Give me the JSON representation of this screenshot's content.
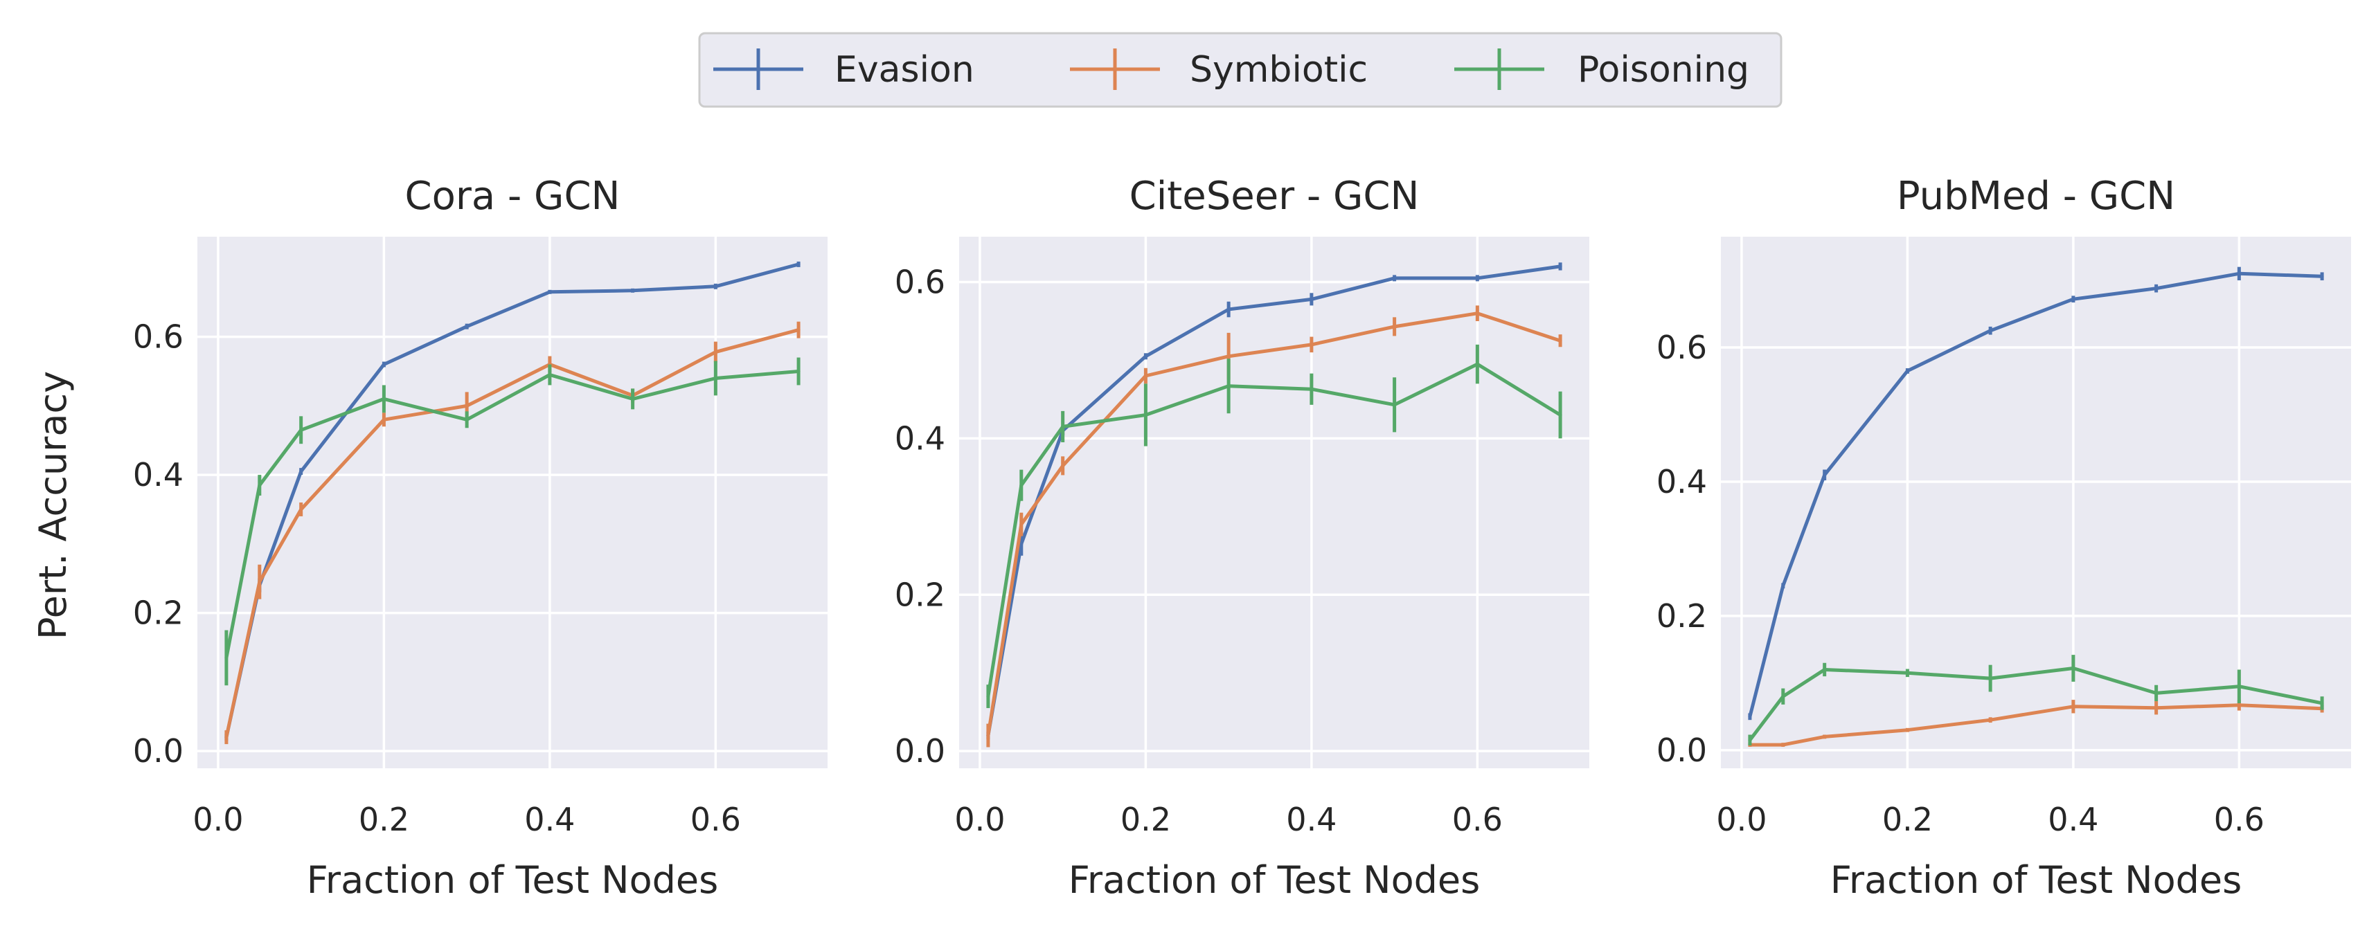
{
  "legend": [
    {
      "name": "Evasion",
      "color": "#4c72b0"
    },
    {
      "name": "Symbiotic",
      "color": "#dd8452"
    },
    {
      "name": "Poisoning",
      "color": "#55a868"
    }
  ],
  "chart_data": [
    {
      "type": "line",
      "title": "Cora - GCN",
      "xlabel": "Fraction of Test Nodes",
      "ylabel": "Pert. Accuracy",
      "xlim": [
        -0.025,
        0.735
      ],
      "ylim": [
        -0.025,
        0.745
      ],
      "xticks": [
        0.0,
        0.2,
        0.4,
        0.6
      ],
      "xtick_labels": [
        "0.0",
        "0.2",
        "0.4",
        "0.6"
      ],
      "yticks": [
        0.0,
        0.2,
        0.4,
        0.6
      ],
      "ytick_labels": [
        "0.0",
        "0.2",
        "0.4",
        "0.6"
      ],
      "x": [
        0.01,
        0.05,
        0.1,
        0.2,
        0.3,
        0.4,
        0.5,
        0.6,
        0.7
      ],
      "series": [
        {
          "name": "Evasion",
          "values": [
            0.02,
            0.24,
            0.405,
            0.56,
            0.615,
            0.665,
            0.667,
            0.673,
            0.705
          ],
          "errors": [
            0.005,
            0.01,
            0.005,
            0.004,
            0.004,
            0.003,
            0.003,
            0.004,
            0.004
          ]
        },
        {
          "name": "Symbiotic",
          "values": [
            0.02,
            0.245,
            0.35,
            0.48,
            0.5,
            0.56,
            0.515,
            0.578,
            0.61
          ],
          "errors": [
            0.01,
            0.025,
            0.01,
            0.01,
            0.02,
            0.012,
            0.01,
            0.015,
            0.012
          ]
        },
        {
          "name": "Poisoning",
          "values": [
            0.135,
            0.385,
            0.465,
            0.51,
            0.48,
            0.545,
            0.51,
            0.54,
            0.55
          ],
          "errors": [
            0.04,
            0.015,
            0.02,
            0.02,
            0.012,
            0.015,
            0.015,
            0.025,
            0.02
          ]
        }
      ]
    },
    {
      "type": "line",
      "title": "CiteSeer - GCN",
      "xlabel": "Fraction of Test Nodes",
      "ylabel": "",
      "xlim": [
        -0.025,
        0.735
      ],
      "ylim": [
        -0.022,
        0.658
      ],
      "xticks": [
        0.0,
        0.2,
        0.4,
        0.6
      ],
      "xtick_labels": [
        "0.0",
        "0.2",
        "0.4",
        "0.6"
      ],
      "yticks": [
        0.0,
        0.2,
        0.4,
        0.6
      ],
      "ytick_labels": [
        "0.0",
        "0.2",
        "0.4",
        "0.6"
      ],
      "x": [
        0.01,
        0.05,
        0.1,
        0.2,
        0.3,
        0.4,
        0.5,
        0.6,
        0.7
      ],
      "series": [
        {
          "name": "Evasion",
          "values": [
            0.02,
            0.265,
            0.41,
            0.505,
            0.565,
            0.578,
            0.605,
            0.605,
            0.62
          ],
          "errors": [
            0.005,
            0.015,
            0.006,
            0.004,
            0.01,
            0.008,
            0.004,
            0.004,
            0.005
          ]
        },
        {
          "name": "Symbiotic",
          "values": [
            0.02,
            0.29,
            0.365,
            0.48,
            0.505,
            0.52,
            0.543,
            0.56,
            0.525
          ],
          "errors": [
            0.015,
            0.015,
            0.012,
            0.01,
            0.03,
            0.01,
            0.012,
            0.01,
            0.008
          ]
        },
        {
          "name": "Poisoning",
          "values": [
            0.07,
            0.34,
            0.415,
            0.43,
            0.467,
            0.463,
            0.443,
            0.495,
            0.43
          ],
          "errors": [
            0.015,
            0.02,
            0.02,
            0.04,
            0.035,
            0.02,
            0.035,
            0.025,
            0.03
          ]
        }
      ]
    },
    {
      "type": "line",
      "title": "PubMed - GCN",
      "xlabel": "Fraction of Test Nodes",
      "ylabel": "",
      "xlim": [
        -0.025,
        0.735
      ],
      "ylim": [
        -0.027,
        0.765
      ],
      "xticks": [
        0.0,
        0.2,
        0.4,
        0.6
      ],
      "xtick_labels": [
        "0.0",
        "0.2",
        "0.4",
        "0.6"
      ],
      "yticks": [
        0.0,
        0.2,
        0.4,
        0.6
      ],
      "ytick_labels": [
        "0.0",
        "0.2",
        "0.4",
        "0.6"
      ],
      "x": [
        0.01,
        0.05,
        0.1,
        0.2,
        0.3,
        0.4,
        0.5,
        0.6,
        0.7
      ],
      "series": [
        {
          "name": "Evasion",
          "values": [
            0.05,
            0.245,
            0.41,
            0.565,
            0.625,
            0.672,
            0.688,
            0.71,
            0.706
          ],
          "errors": [
            0.005,
            0.004,
            0.008,
            0.004,
            0.006,
            0.005,
            0.006,
            0.01,
            0.006
          ]
        },
        {
          "name": "Symbiotic",
          "values": [
            0.008,
            0.008,
            0.02,
            0.03,
            0.045,
            0.065,
            0.063,
            0.067,
            0.062
          ],
          "errors": [
            0.003,
            0.003,
            0.003,
            0.003,
            0.004,
            0.01,
            0.01,
            0.008,
            0.006
          ]
        },
        {
          "name": "Poisoning",
          "values": [
            0.015,
            0.08,
            0.12,
            0.115,
            0.107,
            0.122,
            0.085,
            0.095,
            0.07
          ],
          "errors": [
            0.008,
            0.012,
            0.01,
            0.006,
            0.02,
            0.02,
            0.012,
            0.025,
            0.01
          ]
        }
      ]
    }
  ]
}
